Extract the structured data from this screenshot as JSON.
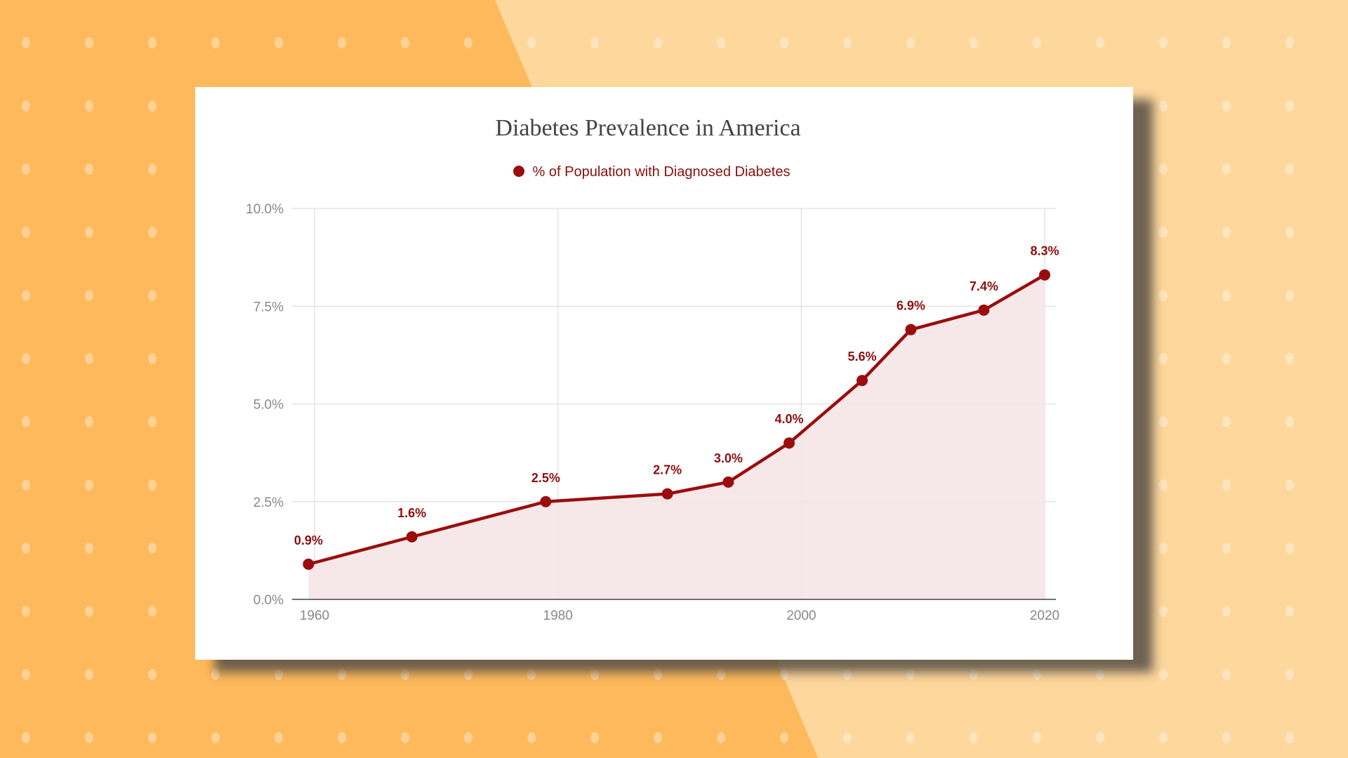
{
  "chart_data": {
    "type": "line",
    "title": "Diabetes Prevalence in America",
    "xlabel": "",
    "ylabel": "",
    "xlim": [
      1960,
      2020
    ],
    "ylim": [
      0,
      10
    ],
    "x_ticks": [
      "1960",
      "1980",
      "2000",
      "2020"
    ],
    "y_ticks": [
      "0.0%",
      "2.5%",
      "5.0%",
      "7.5%",
      "10.0%"
    ],
    "grid": true,
    "legend_position": "top",
    "series": [
      {
        "name": "% of Population with Diagnosed Diabetes",
        "color": "#9b0d0d",
        "area_fill": true,
        "points": [
          {
            "x": 1959.5,
            "y": 0.9,
            "label": "0.9%"
          },
          {
            "x": 1968,
            "y": 1.6,
            "label": "1.6%"
          },
          {
            "x": 1979,
            "y": 2.5,
            "label": "2.5%"
          },
          {
            "x": 1989,
            "y": 2.7,
            "label": "2.7%"
          },
          {
            "x": 1994,
            "y": 3.0,
            "label": "3.0%"
          },
          {
            "x": 1999,
            "y": 4.0,
            "label": "4.0%"
          },
          {
            "x": 2005,
            "y": 5.6,
            "label": "5.6%"
          },
          {
            "x": 2009,
            "y": 6.9,
            "label": "6.9%"
          },
          {
            "x": 2015,
            "y": 7.4,
            "label": "7.4%"
          },
          {
            "x": 2020,
            "y": 8.3,
            "label": "8.3%"
          }
        ]
      }
    ]
  },
  "colors": {
    "background_dark": "#fdb95b",
    "background_light": "#fed79c",
    "line": "#9b0d0d",
    "area": "#f5e5e5",
    "grid": "#dddddd",
    "label": "#8b0f0f"
  }
}
